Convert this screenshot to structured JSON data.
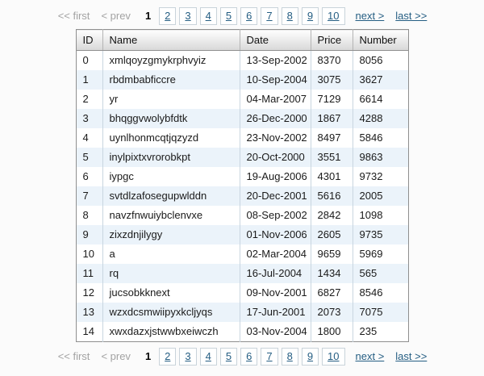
{
  "pagination": {
    "first_label": "<< first",
    "prev_label": "< prev",
    "current_page": "1",
    "pages": [
      "2",
      "3",
      "4",
      "5",
      "6",
      "7",
      "8",
      "9",
      "10"
    ],
    "next_label": "next >",
    "last_label": "last >>"
  },
  "table": {
    "columns": [
      "ID",
      "Name",
      "Date",
      "Price",
      "Number"
    ],
    "rows": [
      [
        "0",
        "xmlqoyzgmykrphvyiz",
        "13-Sep-2002",
        "8370",
        "8056"
      ],
      [
        "1",
        "rbdmbabficcre",
        "10-Sep-2004",
        "3075",
        "3627"
      ],
      [
        "2",
        "yr",
        "04-Mar-2007",
        "7129",
        "6614"
      ],
      [
        "3",
        "bhqggvwolybfdtk",
        "26-Dec-2000",
        "1867",
        "4288"
      ],
      [
        "4",
        "uynlhonmcqtjqzyzd",
        "23-Nov-2002",
        "8497",
        "5846"
      ],
      [
        "5",
        "inylpixtxvrorobkpt",
        "20-Oct-2000",
        "3551",
        "9863"
      ],
      [
        "6",
        "iypgc",
        "19-Aug-2006",
        "4301",
        "9732"
      ],
      [
        "7",
        "svtdlzafosegupwlddn",
        "20-Dec-2001",
        "5616",
        "2005"
      ],
      [
        "8",
        "navzfnwuiybclenvxe",
        "08-Sep-2002",
        "2842",
        "1098"
      ],
      [
        "9",
        "zixzdnjilygy",
        "01-Nov-2006",
        "2605",
        "9735"
      ],
      [
        "10",
        "a",
        "02-Mar-2004",
        "9659",
        "5969"
      ],
      [
        "11",
        "rq",
        "16-Jul-2004",
        "1434",
        "565"
      ],
      [
        "12",
        "jucsobkknext",
        "09-Nov-2001",
        "6827",
        "8546"
      ],
      [
        "13",
        "wzxdcsmwiipyxkcljyqs",
        "17-Jun-2001",
        "2073",
        "7075"
      ],
      [
        "14",
        "xwxdazxjstwwbxeiwczh",
        "03-Nov-2004",
        "1800",
        "235"
      ]
    ]
  },
  "colors": {
    "link_blue": "#255e83",
    "disabled_gray": "#a3a3a3",
    "stripe_blue": "#ebf3fa",
    "outer_border_gray": "#8f8f8f",
    "cell_separator": "#c9d6e0"
  }
}
